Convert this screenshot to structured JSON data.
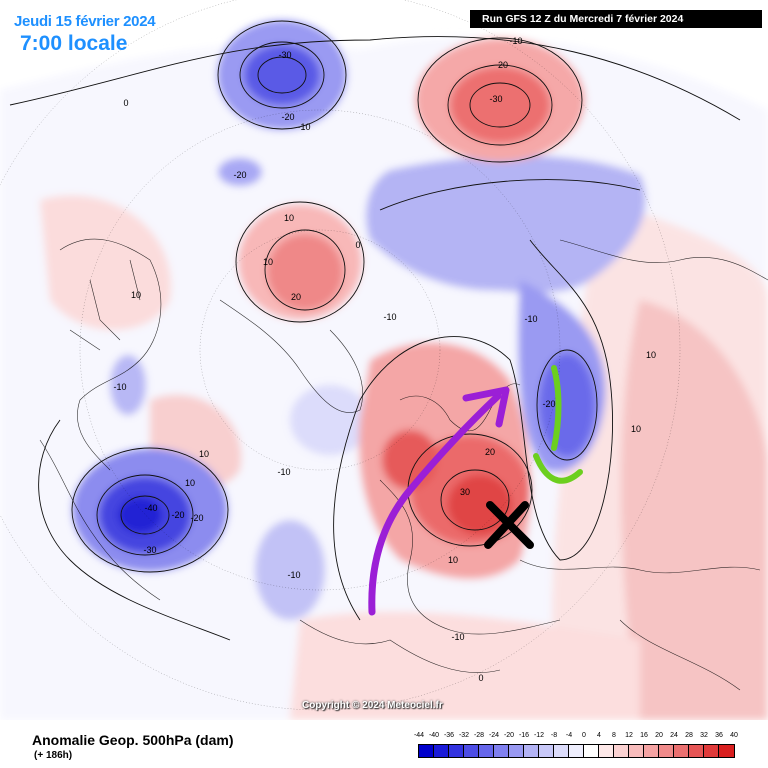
{
  "header": {
    "date": "Jeudi 15 février 2024",
    "time": "7:00 locale",
    "run": "Run GFS 12 Z du Mercredi 7 février 2024"
  },
  "map": {
    "copyright": "Copyright © 2024 Meteociel.fr",
    "contour_labels": [
      "-30",
      "-20",
      "-10",
      "-20",
      "0",
      "-10",
      "20",
      "-30",
      "10",
      "10",
      "20",
      "-10",
      "0",
      "10",
      "-10",
      "-10",
      "-10",
      "-20",
      "10",
      "10",
      "10",
      "-10",
      "10",
      "-20",
      "0",
      "20",
      "-40",
      "-20",
      "-30",
      "30",
      "10",
      "-10",
      "0"
    ],
    "annotations": {
      "purple_arrow": "ridge-flow-arrow",
      "green_curve": "trough-outline",
      "black_cross": "high-center-cross"
    }
  },
  "footer": {
    "title": "Anomalie Geop. 500hPa (dam)",
    "lead_time": "(+ 186h)"
  },
  "colorbar": {
    "labels": [
      "-44",
      "-40",
      "-36",
      "-32",
      "-28",
      "-24",
      "-20",
      "-16",
      "-12",
      "-8",
      "-4",
      "0",
      "4",
      "8",
      "12",
      "16",
      "20",
      "24",
      "28",
      "32",
      "36",
      "40"
    ],
    "colors": [
      "#0000cc",
      "#1a1ad9",
      "#3333e0",
      "#4d4de6",
      "#6666eb",
      "#8080f0",
      "#9999f2",
      "#b3b3f5",
      "#c8c8f8",
      "#dcdcfb",
      "#eeeefd",
      "#ffffff",
      "#fde8e8",
      "#fbd2d2",
      "#f8bcbc",
      "#f5a3a3",
      "#f08a8a",
      "#eb7070",
      "#e65555",
      "#e03a3a",
      "#d91f1f"
    ]
  },
  "colors": {
    "header_text": "#1e90ff",
    "arrow": "#9b1fd6",
    "trough": "#6ccf1f",
    "cross": "#000000"
  }
}
